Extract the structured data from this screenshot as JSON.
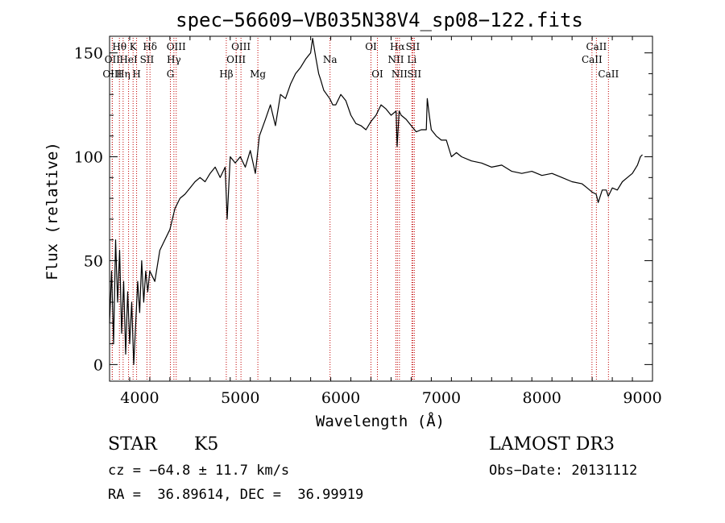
{
  "chart_data": {
    "type": "line",
    "title": "spec−56609−VB035N38V4_sp08−122.fits",
    "xlabel": "Wavelength (Å)",
    "ylabel": "Flux (relative)",
    "xlim": [
      3700,
      9100
    ],
    "ylim": [
      -8,
      158
    ],
    "x_ticks": [
      4000,
      5000,
      6000,
      7000,
      8000,
      9000
    ],
    "y_ticks": [
      0,
      50,
      100,
      150
    ],
    "grid": false,
    "series": [
      {
        "x": [
          3700,
          3720,
          3740,
          3760,
          3780,
          3800,
          3820,
          3840,
          3860,
          3880,
          3900,
          3920,
          3940,
          3960,
          3980,
          4000,
          4020,
          4040,
          4060,
          4080,
          4100,
          4150,
          4200,
          4250,
          4300,
          4350,
          4400,
          4450,
          4500,
          4550,
          4600,
          4650,
          4700,
          4750,
          4800,
          4850,
          4870,
          4900,
          4950,
          5000,
          5050,
          5100,
          5150,
          5190,
          5250,
          5300,
          5350,
          5400,
          5450,
          5500,
          5550,
          5600,
          5650,
          5700,
          5720,
          5750,
          5780,
          5800,
          5830,
          5860,
          5890,
          5920,
          5950,
          6000,
          6050,
          6100,
          6150,
          6200,
          6250,
          6300,
          6350,
          6400,
          6450,
          6500,
          6550,
          6560,
          6580,
          6600,
          6650,
          6700,
          6750,
          6800,
          6850,
          6860,
          6880,
          6900,
          6950,
          7000,
          7050,
          7100,
          7150,
          7200,
          7300,
          7400,
          7500,
          7600,
          7700,
          7800,
          7900,
          8000,
          8100,
          8200,
          8300,
          8400,
          8450,
          8500,
          8540,
          8560,
          8600,
          8640,
          8660,
          8700,
          8750,
          8800,
          8850,
          8900,
          8950,
          8980,
          9000
        ],
        "y": [
          20,
          45,
          10,
          60,
          30,
          55,
          15,
          40,
          5,
          35,
          10,
          30,
          0,
          20,
          40,
          25,
          50,
          30,
          45,
          35,
          45,
          40,
          55,
          60,
          65,
          75,
          80,
          82,
          85,
          88,
          90,
          88,
          92,
          95,
          90,
          95,
          70,
          100,
          97,
          100,
          95,
          103,
          92,
          110,
          118,
          125,
          115,
          130,
          128,
          135,
          140,
          143,
          147,
          150,
          157,
          148,
          140,
          137,
          132,
          130,
          128,
          125,
          125,
          130,
          127,
          120,
          116,
          115,
          113,
          117,
          120,
          125,
          123,
          120,
          122,
          105,
          122,
          120,
          118,
          115,
          112,
          113,
          113,
          128,
          120,
          113,
          110,
          108,
          108,
          100,
          102,
          100,
          98,
          97,
          95,
          96,
          93,
          92,
          93,
          91,
          92,
          90,
          88,
          87,
          85,
          83,
          82,
          78,
          84,
          84,
          81,
          85,
          84,
          88,
          90,
          92,
          96,
          100,
          101
        ]
      }
    ],
    "spectral_lines": [
      {
        "label": "Hθ",
        "x": 3798,
        "row": 1
      },
      {
        "label": "OII",
        "x": 3727,
        "row": 2
      },
      {
        "label": "OIII",
        "x": 3727,
        "row": 3
      },
      {
        "label": "Hη",
        "x": 3835,
        "row": 3
      },
      {
        "label": "HeI",
        "x": 3889,
        "row": 2
      },
      {
        "label": "K",
        "x": 3934,
        "row": 1
      },
      {
        "label": "H",
        "x": 3969,
        "row": 3
      },
      {
        "label": "SII",
        "x": 4072,
        "row": 2
      },
      {
        "label": "Hδ",
        "x": 4102,
        "row": 1
      },
      {
        "label": "OIII",
        "x": 4363,
        "row": 1
      },
      {
        "label": "Hγ",
        "x": 4340,
        "row": 2
      },
      {
        "label": "G",
        "x": 4305,
        "row": 3
      },
      {
        "label": "Hβ",
        "x": 4861,
        "row": 3
      },
      {
        "label": "OIII",
        "x": 5007,
        "row": 1
      },
      {
        "label": "OIII",
        "x": 4959,
        "row": 2
      },
      {
        "label": "Mg",
        "x": 5175,
        "row": 3
      },
      {
        "label": "Na",
        "x": 5893,
        "row": 2
      },
      {
        "label": "OI",
        "x": 6300,
        "row": 1
      },
      {
        "label": "OI",
        "x": 6364,
        "row": 3
      },
      {
        "label": "Hα",
        "x": 6563,
        "row": 1
      },
      {
        "label": "NII",
        "x": 6548,
        "row": 2
      },
      {
        "label": "NII",
        "x": 6583,
        "row": 3
      },
      {
        "label": "SII",
        "x": 6716,
        "row": 1
      },
      {
        "label": "Li",
        "x": 6707,
        "row": 2
      },
      {
        "label": "SII",
        "x": 6731,
        "row": 3
      },
      {
        "label": "CaII",
        "x": 8542,
        "row": 1
      },
      {
        "label": "CaII",
        "x": 8498,
        "row": 2
      },
      {
        "label": "CaII",
        "x": 8662,
        "row": 3
      }
    ]
  },
  "info": {
    "object_type": "STAR",
    "subclass": "K5",
    "survey": "LAMOST DR3",
    "redshift": "cz = −64.8 ± 11.7 km/s",
    "obs_date": "Obs−Date: 20131112",
    "coords": "RA =  36.89614, DEC =  36.99919"
  }
}
